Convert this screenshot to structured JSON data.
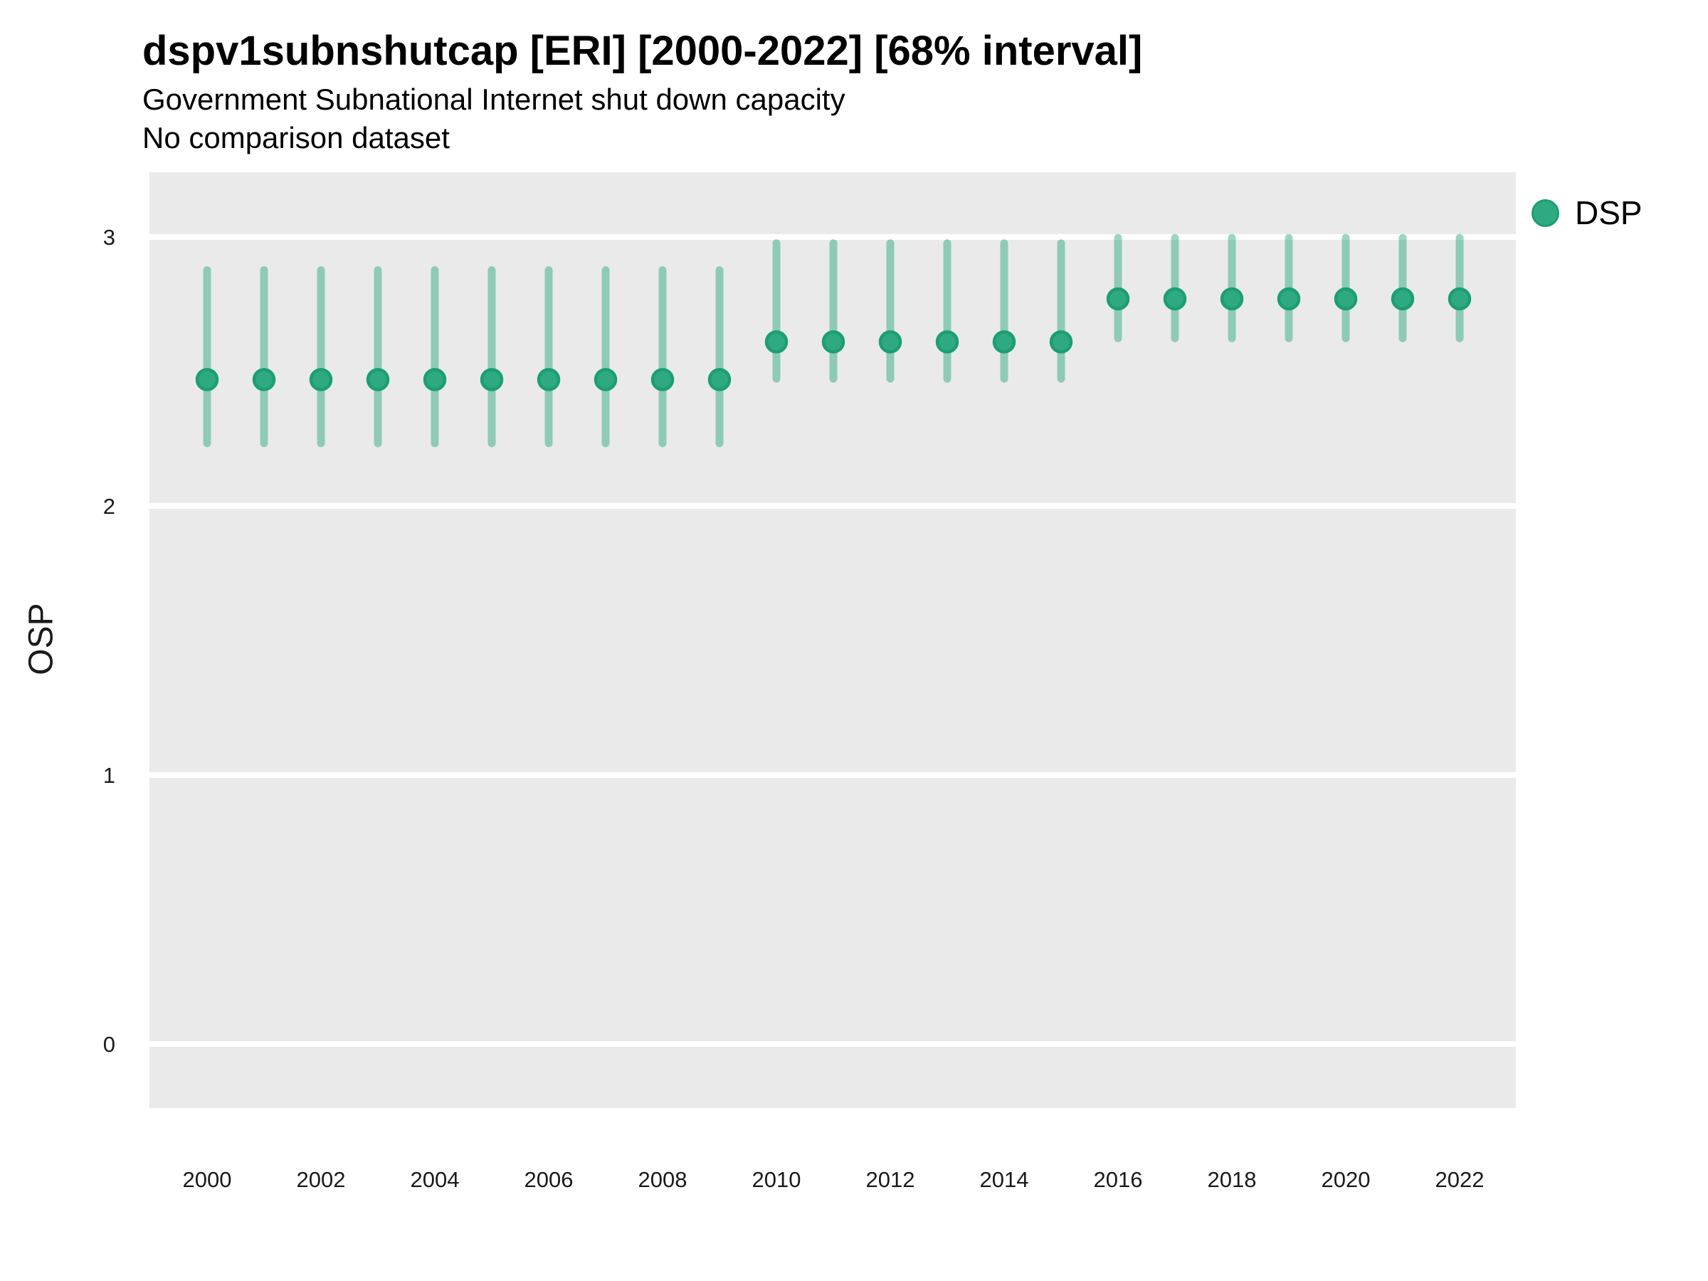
{
  "header": {
    "title": "dspv1subnshutcap [ERI] [2000-2022] [68% interval]",
    "subtitle": "Government Subnational Internet shut down capacity",
    "note": "No comparison dataset"
  },
  "axes": {
    "y_title": "OSP",
    "y_ticks": [
      0,
      1,
      2,
      3
    ],
    "x_ticks": [
      2000,
      2002,
      2004,
      2006,
      2008,
      2010,
      2012,
      2014,
      2016,
      2018,
      2020,
      2022
    ]
  },
  "legend": {
    "items": [
      {
        "label": "DSP",
        "color": "#2fa981"
      }
    ]
  },
  "colors": {
    "panel": "#eaeaea",
    "gridline": "#ffffff",
    "point_fill": "#2fa981",
    "point_stroke": "#1b9f72",
    "interval": "rgba(32,166,121,0.45)",
    "tick_text": "#1a1a1a"
  },
  "chart_data": {
    "type": "scatter",
    "style": "pointrange",
    "title": "dspv1subnshutcap [ERI] [2000-2022] [68% interval]",
    "subtitle": "Government Subnational Internet shut down capacity",
    "note": "No comparison dataset",
    "xlabel": "",
    "ylabel": "OSP",
    "interval": "68%",
    "ylim": [
      -0.24,
      3.24
    ],
    "grid": "horizontal-major-only",
    "legend_position": "right",
    "x": [
      2000,
      2001,
      2002,
      2003,
      2004,
      2005,
      2006,
      2007,
      2008,
      2009,
      2010,
      2011,
      2012,
      2013,
      2014,
      2015,
      2016,
      2017,
      2018,
      2019,
      2020,
      2021,
      2022
    ],
    "series": [
      {
        "name": "DSP",
        "values": [
          2.47,
          2.47,
          2.47,
          2.47,
          2.47,
          2.47,
          2.47,
          2.47,
          2.47,
          2.47,
          2.61,
          2.61,
          2.61,
          2.61,
          2.61,
          2.61,
          2.77,
          2.77,
          2.77,
          2.77,
          2.77,
          2.77,
          2.77
        ],
        "lower": [
          2.22,
          2.22,
          2.22,
          2.22,
          2.22,
          2.22,
          2.22,
          2.22,
          2.22,
          2.22,
          2.46,
          2.46,
          2.46,
          2.46,
          2.46,
          2.46,
          2.61,
          2.61,
          2.61,
          2.61,
          2.61,
          2.61,
          2.61
        ],
        "upper": [
          2.89,
          2.89,
          2.89,
          2.89,
          2.89,
          2.89,
          2.89,
          2.89,
          2.89,
          2.89,
          2.99,
          2.99,
          2.99,
          2.99,
          2.99,
          2.99,
          3.01,
          3.01,
          3.01,
          3.01,
          3.01,
          3.01,
          3.01
        ]
      }
    ]
  }
}
